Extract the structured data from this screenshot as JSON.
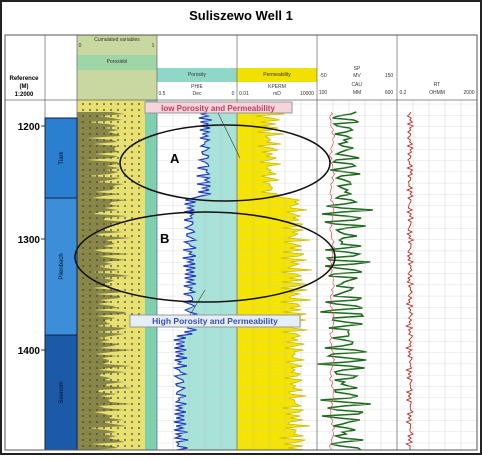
{
  "title": "Suliszewo Well 1",
  "reference": {
    "label": "Reference",
    "unit": "(M)",
    "scale": "1:2000"
  },
  "depths": [
    "1200",
    "1300",
    "1400"
  ],
  "formations": [
    "Tiark",
    "Plienbach",
    "Seenom"
  ],
  "tracks": {
    "lithology": {
      "title": "Cumulated variables",
      "min": "0",
      "max": "1",
      "name": "Porosidol"
    },
    "porosity": {
      "title": "Porosity",
      "curve": "PHIE",
      "min": "0.5",
      "unit": "Dec",
      "max": "0"
    },
    "permeability": {
      "title": "Permeability",
      "curve": "KPERM",
      "min": "0.01",
      "unit": "mD",
      "max": "10000"
    },
    "sp": {
      "title": "SP",
      "min": "-50",
      "unit": "MV",
      "max": "150",
      "curve2": "CALI",
      "min2": "100",
      "unit2": "MM",
      "max2": "600"
    },
    "resistivity": {
      "title": "RT",
      "min": "0.2",
      "unit": "OHMM",
      "max": "2000"
    }
  },
  "annotations": {
    "low": "low Porosity and Permeability",
    "high": "High Porosity and Permeability",
    "a": "A",
    "b": "B"
  }
}
